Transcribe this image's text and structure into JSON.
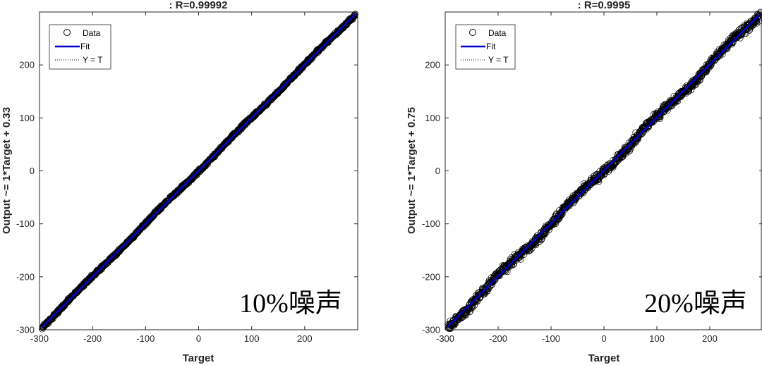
{
  "chart_data": [
    {
      "type": "scatter",
      "title": ": R=0.99992",
      "xlabel": "Target",
      "ylabel": "Output ~= 1*Target + 0.33",
      "xlim": [
        -300,
        300
      ],
      "ylim": [
        -300,
        300
      ],
      "xticks": [
        -300,
        -200,
        -100,
        0,
        100,
        200
      ],
      "yticks": [
        -300,
        -200,
        -100,
        0,
        100,
        200
      ],
      "xtick_labels": [
        "-300",
        "-200",
        "-100",
        "0",
        "100",
        "200"
      ],
      "ytick_labels": [
        "-300",
        "-200",
        "-100",
        "0",
        "100",
        "200"
      ],
      "grid": false,
      "legend": {
        "placement": "top-left",
        "entries": [
          {
            "label": "Data",
            "style": "circle-marker"
          },
          {
            "label": "Fit",
            "style": "solid-line"
          },
          {
            "label": "Y = T",
            "style": "dotted-line"
          }
        ]
      },
      "fit": {
        "slope": 1,
        "intercept": 0.33
      },
      "identity": {
        "slope": 1,
        "intercept": 0
      },
      "data_range": [
        -295,
        295
      ],
      "spread": 3,
      "colors": {
        "data": "#000000",
        "fit": "#0000cc",
        "identity": "#000000"
      },
      "annotation": "10%噪声"
    },
    {
      "type": "scatter",
      "title": ": R=0.9995",
      "xlabel": "Target",
      "ylabel": "Output ~= 1*Target + 0.75",
      "xlim": [
        -300,
        300
      ],
      "ylim": [
        -300,
        300
      ],
      "xticks": [
        -300,
        -200,
        -100,
        0,
        100,
        200
      ],
      "yticks": [
        -300,
        -200,
        -100,
        0,
        100,
        200
      ],
      "xtick_labels": [
        "-300",
        "-200",
        "-100",
        "0",
        "100",
        "200"
      ],
      "ytick_labels": [
        "-300",
        "-200",
        "-100",
        "0",
        "100",
        "200"
      ],
      "grid": false,
      "legend": {
        "placement": "top-left",
        "entries": [
          {
            "label": "Data",
            "style": "circle-marker"
          },
          {
            "label": "Fit",
            "style": "solid-line"
          },
          {
            "label": "Y = T",
            "style": "dotted-line"
          }
        ]
      },
      "fit": {
        "slope": 1,
        "intercept": 0.75
      },
      "identity": {
        "slope": 1,
        "intercept": 0
      },
      "data_range": [
        -295,
        295
      ],
      "spread": 8,
      "colors": {
        "data": "#000000",
        "fit": "#0000cc",
        "identity": "#000000"
      },
      "annotation": "20%噪声"
    }
  ]
}
